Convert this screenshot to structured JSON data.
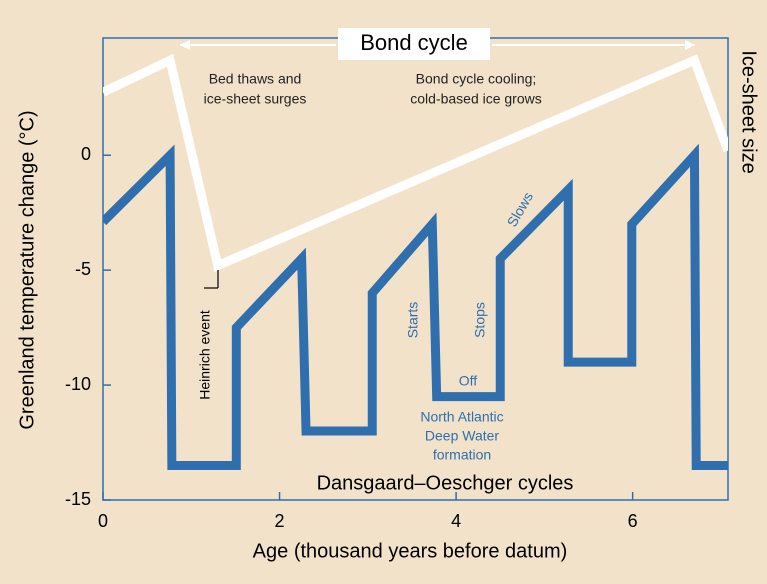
{
  "chart_data": {
    "type": "line",
    "title": "Bond cycle",
    "x_label": "Age (thousand years before datum)",
    "y_label": "Greenland temperature change (°C)",
    "y2_label": "Ice-sheet size",
    "xlim": [
      0,
      7.08
    ],
    "ylim": [
      -15,
      5.1
    ],
    "xticks": [
      0,
      2,
      4,
      6
    ],
    "yticks": [
      0,
      -5,
      -10,
      -15
    ],
    "series": [
      {
        "name": "Dansgaard–Oeschger cycles",
        "color": "#2f6fad",
        "x": [
          0,
          0.76,
          0.78,
          1.51,
          1.51,
          2.25,
          2.3,
          3.05,
          3.05,
          3.73,
          3.78,
          4.5,
          4.5,
          5.27,
          5.27,
          5.99,
          5.99,
          6.7,
          6.72,
          7.08
        ],
        "values": [
          -2.9,
          0,
          -13.5,
          -13.5,
          -7.5,
          -4.5,
          -12,
          -12,
          -6,
          -3,
          -10.5,
          -10.5,
          -4.5,
          -1.5,
          -9,
          -9,
          -3,
          0,
          -13.5,
          -13.5
        ]
      },
      {
        "name": "Ice-sheet size",
        "color": "#ffffff",
        "x": [
          0,
          0.76,
          1.3,
          6.7,
          7.08
        ],
        "values": [
          2.74,
          4.13,
          -4.8,
          4.13,
          0.2
        ]
      }
    ],
    "annotations": [
      "Bed thaws and",
      "ice-sheet surges",
      "Bond cycle cooling;",
      "cold-based ice grows",
      "Heinrich event",
      "Starts",
      "Stops",
      "Slows",
      "Off",
      "North Atlantic",
      "Deep Water",
      "formation"
    ]
  }
}
